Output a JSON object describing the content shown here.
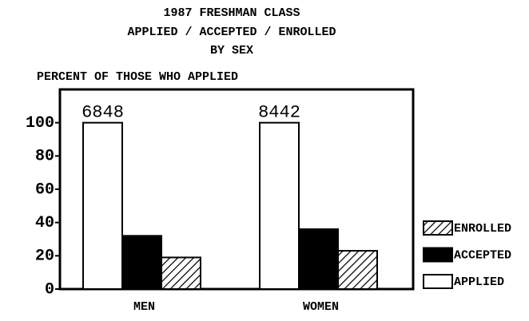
{
  "chart_data": {
    "type": "bar",
    "title": [
      "1987 FRESHMAN CLASS",
      "APPLIED / ACCEPTED / ENROLLED",
      "BY SEX"
    ],
    "y_label": "PERCENT OF THOSE WHO APPLIED",
    "categories": [
      "MEN",
      "WOMEN"
    ],
    "series": [
      {
        "name": "APPLIED",
        "color": "#ffffff",
        "values": [
          100,
          100
        ]
      },
      {
        "name": "ACCEPTED",
        "color": "#000000",
        "values": [
          32,
          36
        ]
      },
      {
        "name": "ENROLLED",
        "color": "#000000",
        "hatch": true,
        "values": [
          19,
          23
        ]
      }
    ],
    "annotations": [
      "6848",
      "8442"
    ],
    "ylim": [
      0,
      120
    ],
    "yticks": [
      0,
      20,
      40,
      60,
      80,
      100
    ],
    "legend": "right",
    "grid": false
  }
}
